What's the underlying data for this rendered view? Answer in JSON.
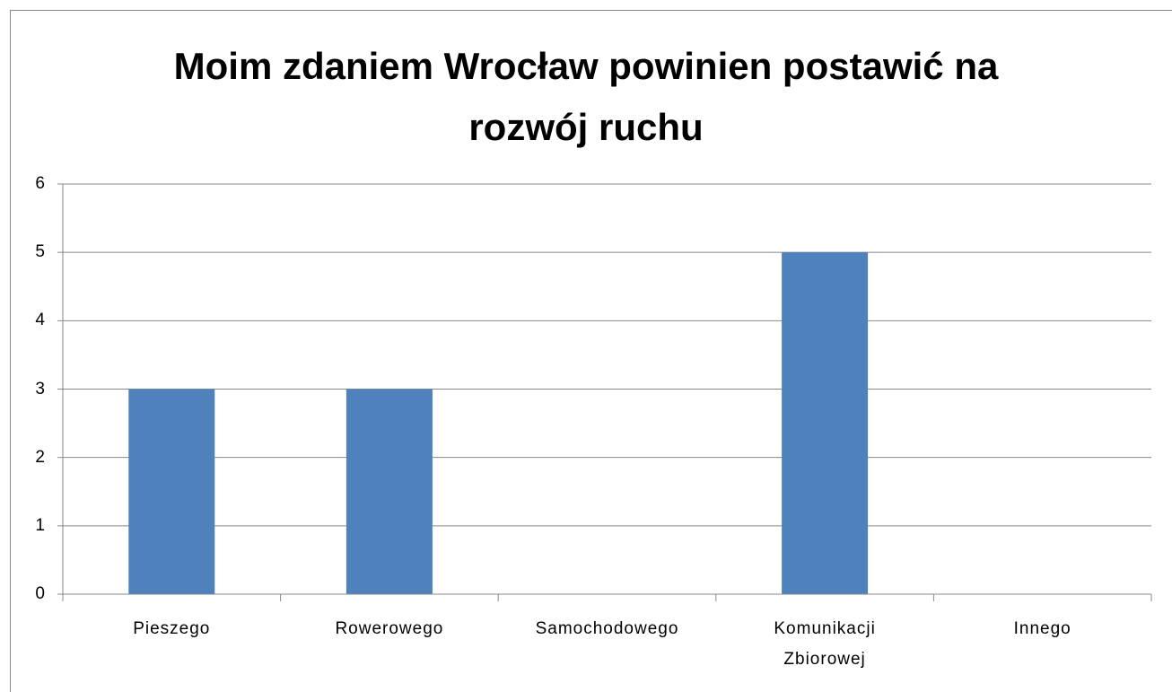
{
  "chart_data": {
    "type": "bar",
    "title": "Moim zdaniem Wrocław powinien postawić na rozwój ruchu",
    "categories": [
      "Pieszego",
      "Rowerowego",
      "Samochodowego",
      "Komunikacji Zbiorowej",
      "Innego"
    ],
    "values": [
      3,
      3,
      0,
      5,
      0
    ],
    "color": "#4f81bd",
    "ylim": [
      0,
      6
    ],
    "yticks": [
      0,
      1,
      2,
      3,
      4,
      5,
      6
    ],
    "grid": true
  }
}
